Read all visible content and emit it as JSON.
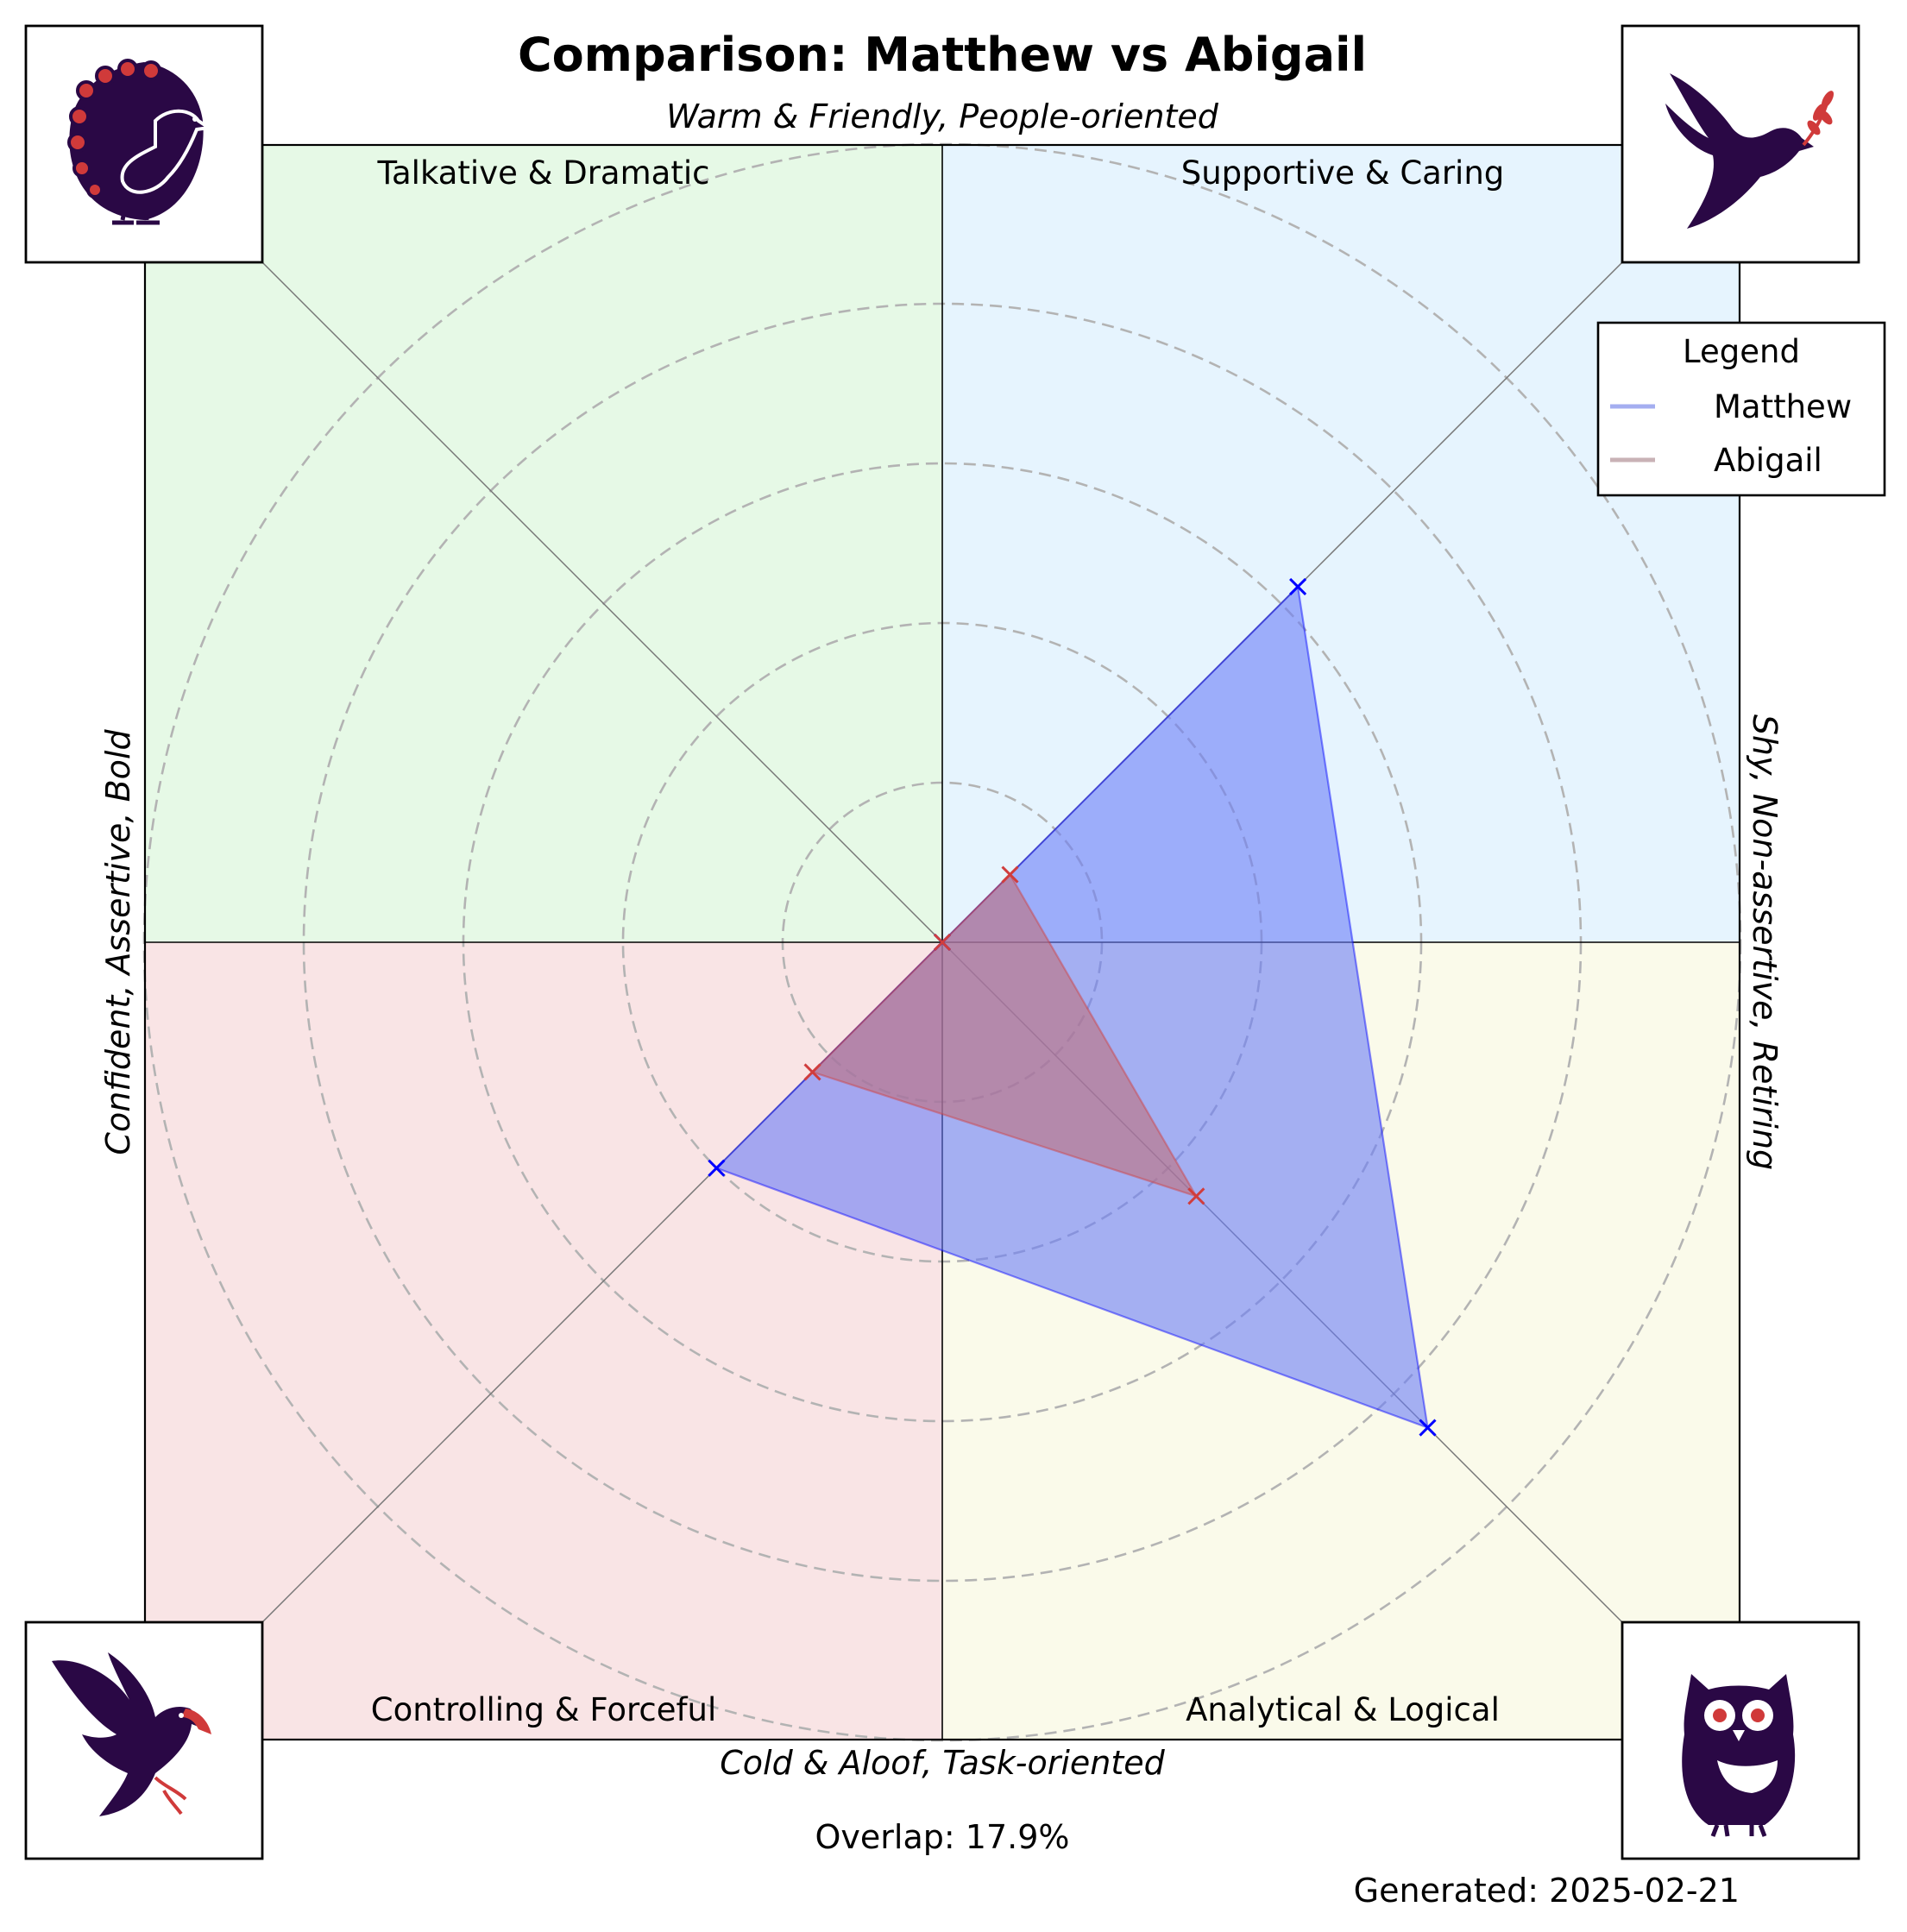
{
  "chart_data": {
    "type": "radar",
    "title": "Comparison: Matthew vs Abigail",
    "axis_top": "Warm & Friendly, People-oriented",
    "axis_bottom": "Cold & Aloof, Task-oriented",
    "axis_left": "Confident, Assertive, Bold",
    "axis_right": "Shy, Non-assertive, Retiring",
    "quadrants": [
      {
        "label": "Talkative & Dramatic",
        "color": "#e6f9e6",
        "icon": "peacock-icon"
      },
      {
        "label": "Supportive & Caring",
        "color": "#e6f4fe",
        "icon": "dove-icon"
      },
      {
        "label": "Controlling & Forceful",
        "color": "#f9e4e5",
        "icon": "eagle-icon"
      },
      {
        "label": "Analytical & Logical",
        "color": "#fafaea",
        "icon": "owl-icon"
      }
    ],
    "axes_order": [
      "Talkative & Dramatic",
      "Supportive & Caring",
      "Analytical & Logical",
      "Controlling & Forceful"
    ],
    "axis_angles_deg": [
      135,
      45,
      -45,
      -135
    ],
    "rmax": 10,
    "ring_values": [
      2,
      4,
      6,
      8,
      10
    ],
    "series": [
      {
        "name": "Matthew",
        "values": [
          0,
          6.3,
          8.6,
          4.0
        ],
        "color": "#0000ff",
        "fill": "#6a7df7"
      },
      {
        "name": "Abigail",
        "values": [
          0,
          1.2,
          4.5,
          2.3
        ],
        "color": "#d03d3d",
        "fill": "#c0707c"
      }
    ],
    "legend_title": "Legend",
    "legend_position": "top-right",
    "legend_entries": [
      {
        "name": "Matthew",
        "color": "#a4aef0"
      },
      {
        "name": "Abigail",
        "color": "#c9b2b6"
      }
    ],
    "overlap_label": "Overlap: 17.9%",
    "generated_label": "Generated: 2025-02-21",
    "grid": true
  }
}
